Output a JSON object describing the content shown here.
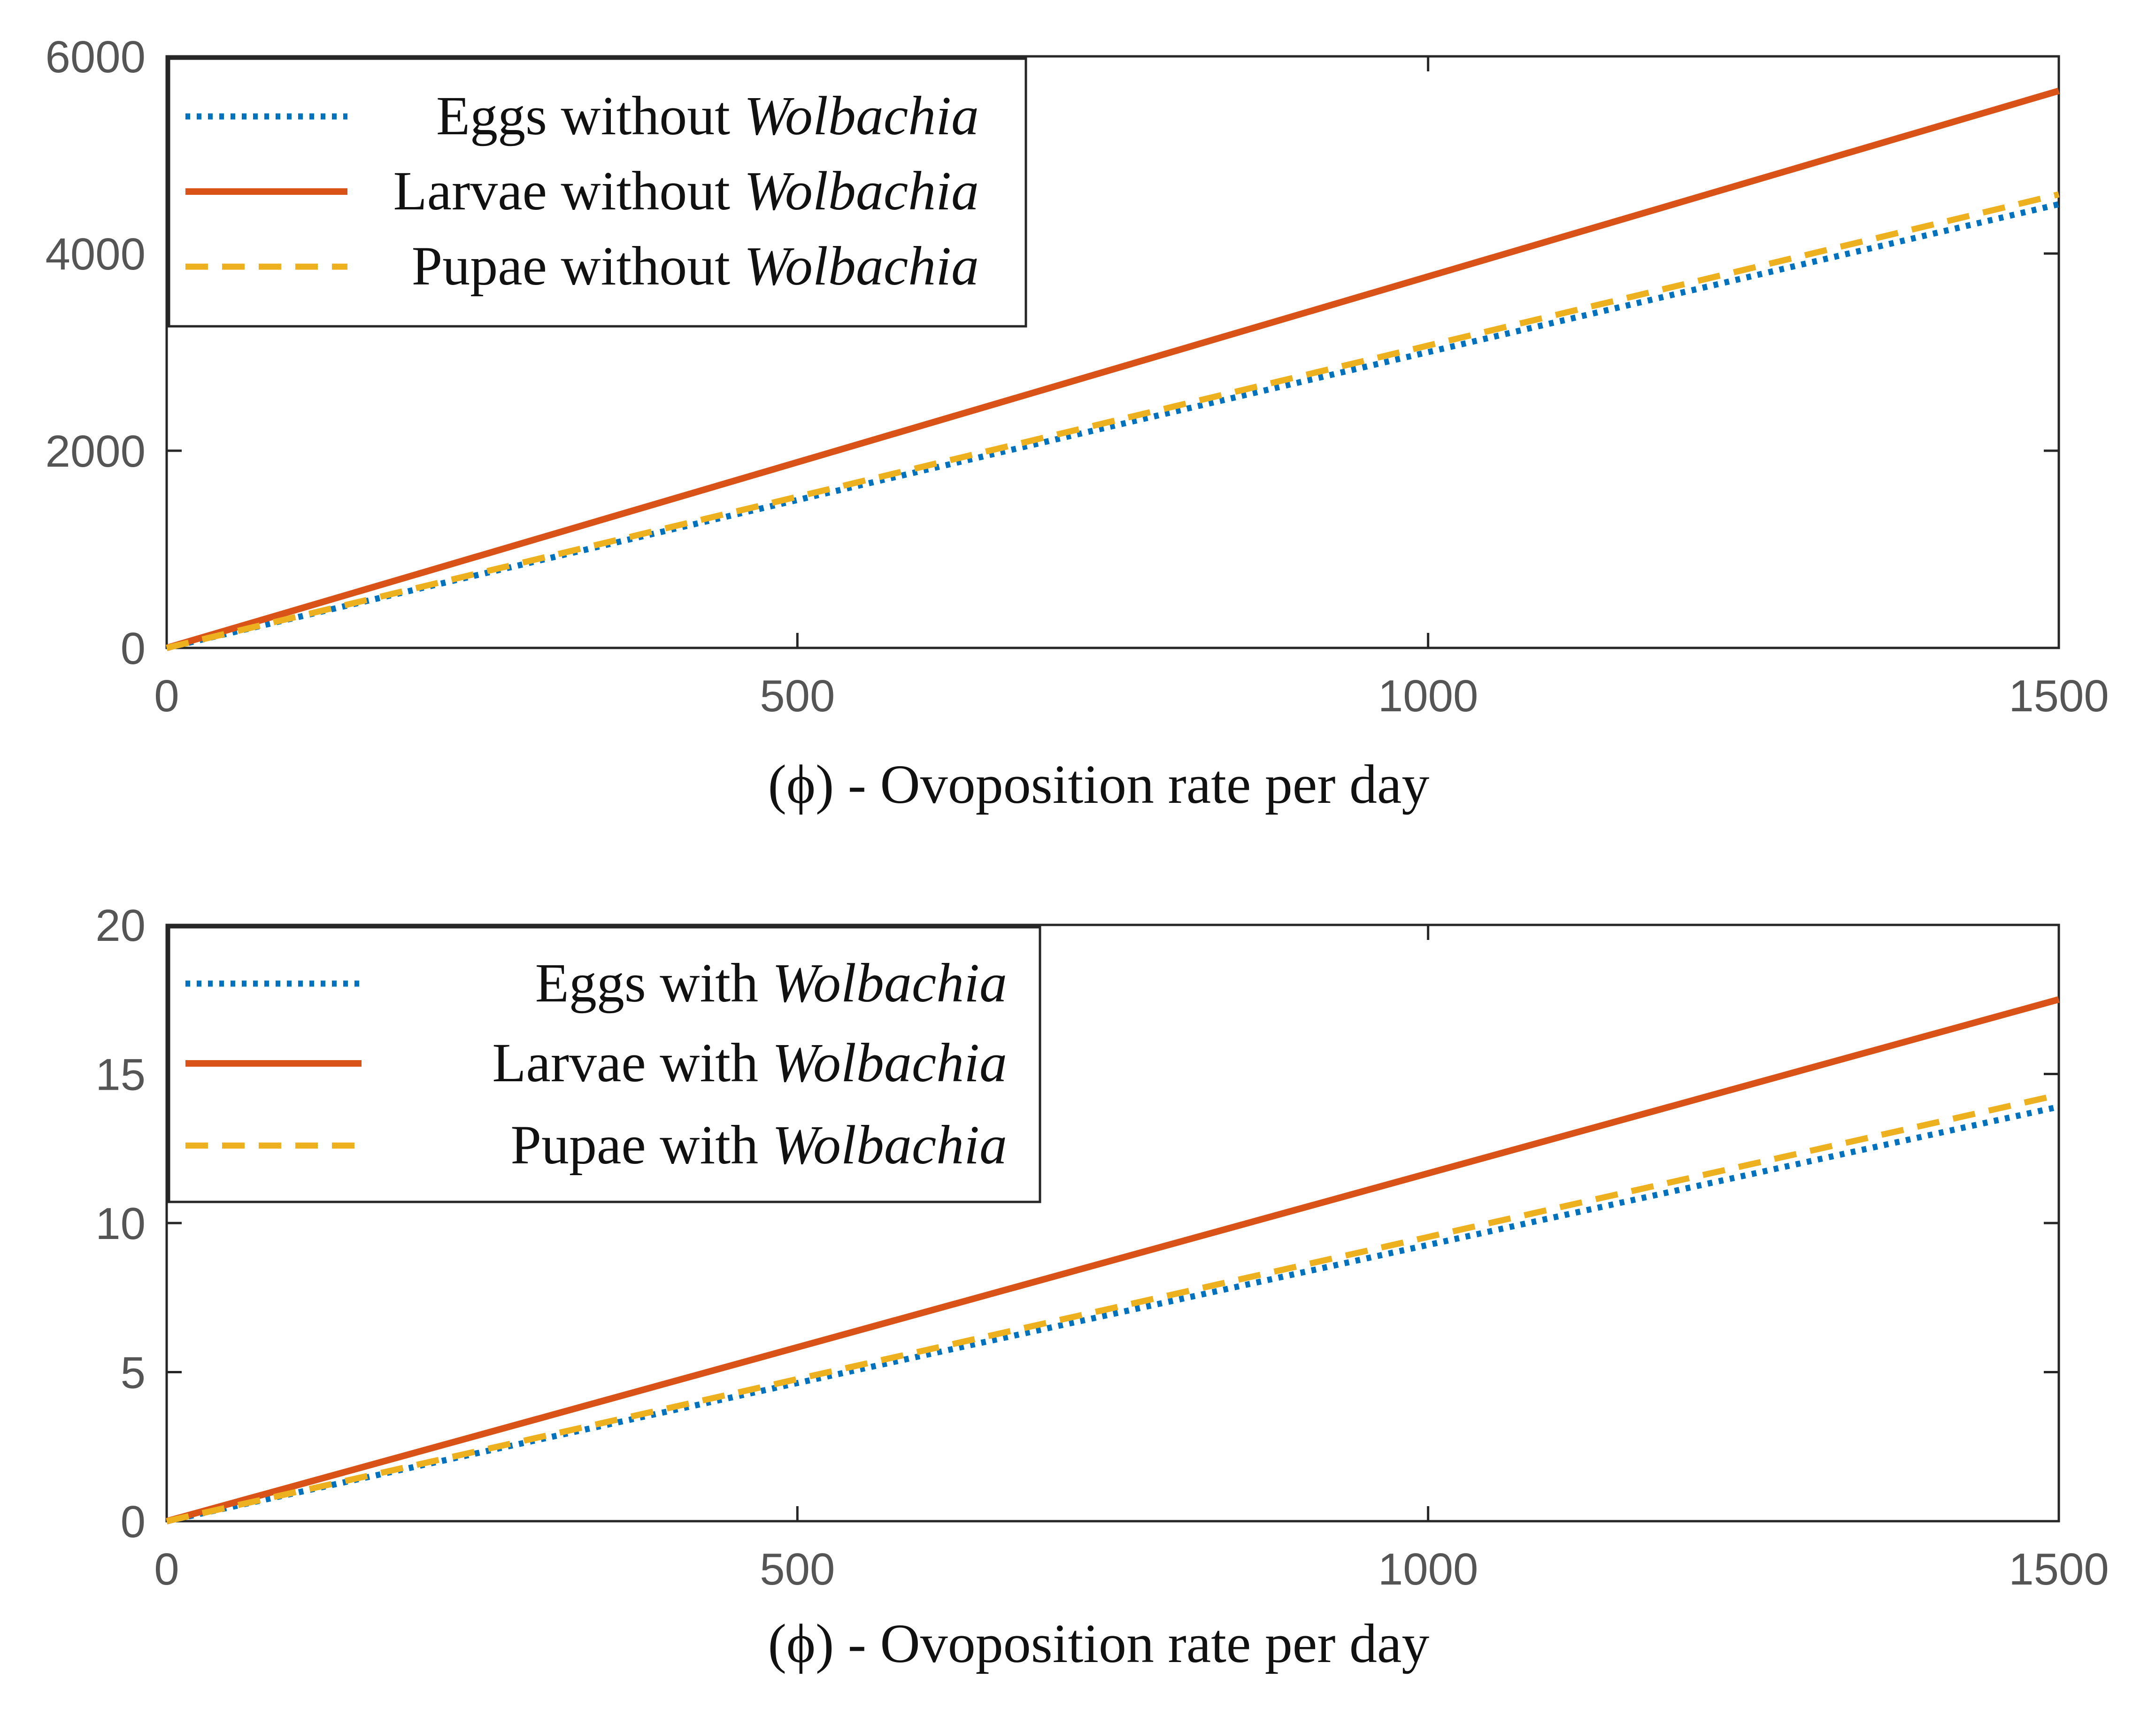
{
  "colors": {
    "eggs": "#0072BD",
    "larvae": "#D95319",
    "pupae": "#EDB120",
    "axis": "#262626",
    "tick_text": "#555555",
    "background": "#ffffff"
  },
  "chart_data": [
    {
      "type": "line",
      "title": "",
      "xlabel": "(ϕ) - Ovoposition rate per day",
      "ylabel": "",
      "xlim": [
        0,
        1500
      ],
      "ylim": [
        0,
        6000
      ],
      "xticks": [
        "0",
        "500",
        "1000",
        "1500"
      ],
      "yticks": [
        "0",
        "2000",
        "4000",
        "6000"
      ],
      "grid": false,
      "legend_position": "top-left",
      "series": [
        {
          "name_plain": "Eggs without ",
          "name_italic": "Wolbachia",
          "style": "dotted",
          "color_key": "eggs",
          "x": [
            0,
            1500
          ],
          "y": [
            0,
            4500
          ]
        },
        {
          "name_plain": "Larvae without ",
          "name_italic": "Wolbachia",
          "style": "solid",
          "color_key": "larvae",
          "x": [
            0,
            1500
          ],
          "y": [
            0,
            5650
          ]
        },
        {
          "name_plain": "Pupae without ",
          "name_italic": "Wolbachia",
          "style": "dashed",
          "color_key": "pupae",
          "x": [
            0,
            1500
          ],
          "y": [
            0,
            4600
          ]
        }
      ]
    },
    {
      "type": "line",
      "title": "",
      "xlabel": "(ϕ) - Ovoposition rate per day",
      "ylabel": "",
      "xlim": [
        0,
        1500
      ],
      "ylim": [
        0,
        20
      ],
      "xticks": [
        "0",
        "500",
        "1000",
        "1500"
      ],
      "yticks": [
        "0",
        "5",
        "10",
        "15",
        "20"
      ],
      "grid": false,
      "legend_position": "top-left",
      "series": [
        {
          "name_plain": "Eggs with ",
          "name_italic": "Wolbachia",
          "style": "dotted",
          "color_key": "eggs",
          "x": [
            0,
            1500
          ],
          "y": [
            0,
            13.9
          ]
        },
        {
          "name_plain": "Larvae with ",
          "name_italic": "Wolbachia",
          "style": "solid",
          "color_key": "larvae",
          "x": [
            0,
            1500
          ],
          "y": [
            0,
            17.5
          ]
        },
        {
          "name_plain": "Pupae with ",
          "name_italic": "Wolbachia",
          "style": "dashed",
          "color_key": "pupae",
          "x": [
            0,
            1500
          ],
          "y": [
            0,
            14.3
          ]
        }
      ]
    }
  ]
}
